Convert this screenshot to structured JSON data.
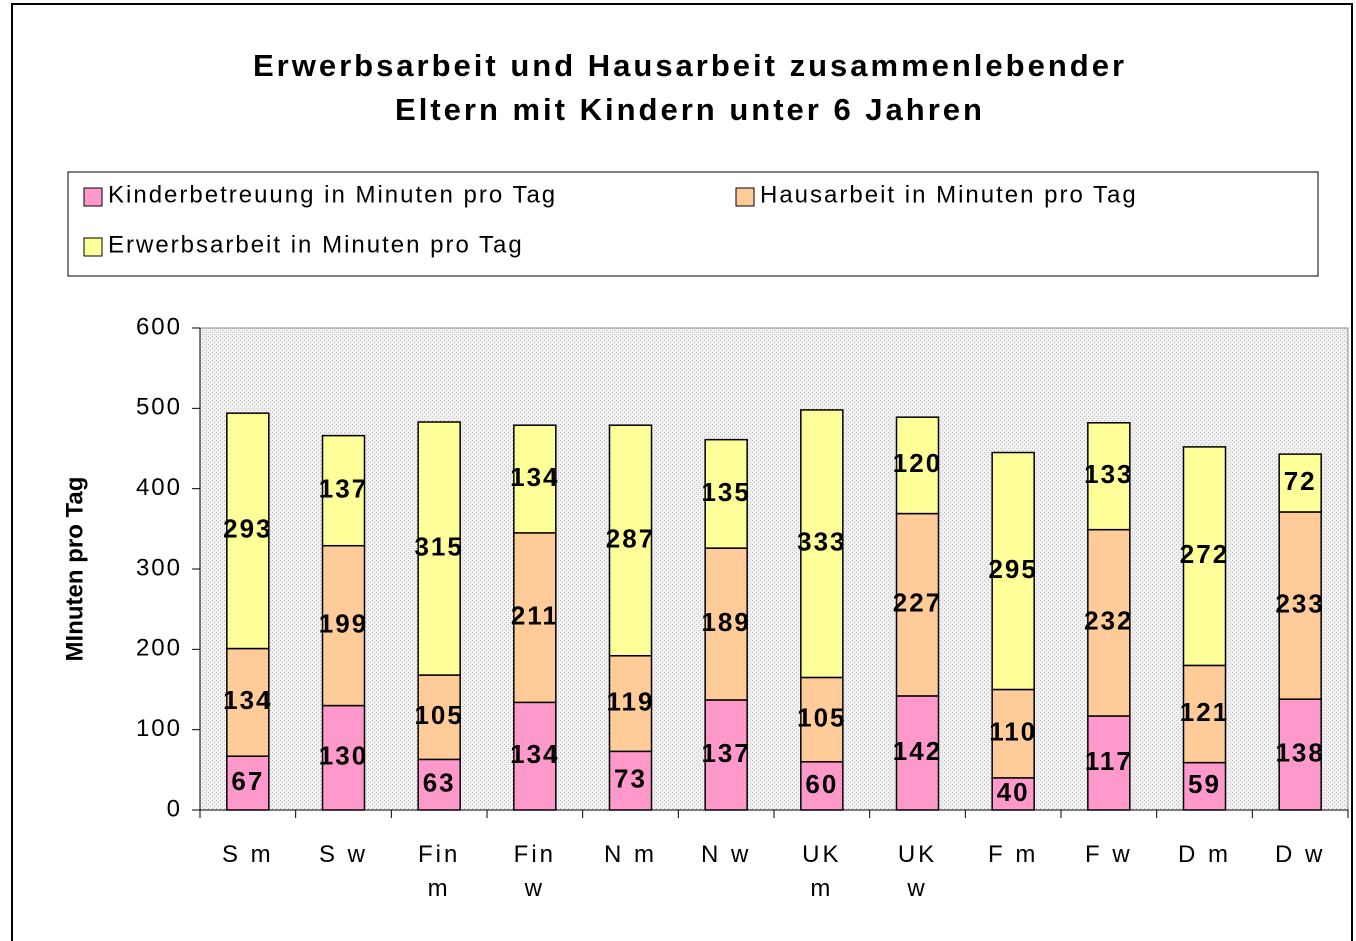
{
  "chart_data": {
    "type": "stacked_bar",
    "title": [
      "Erwerbsarbeit und Hausarbeit zusammenlebender",
      "Eltern mit Kindern unter 6 Jahren"
    ],
    "y_label": "MInuten pro Tag",
    "categories": [
      "S m",
      "S w",
      "Fin m",
      "Fin w",
      "N m",
      "N w",
      "UK m",
      "UK w",
      "F m",
      "F w",
      "D m",
      "D w"
    ],
    "series": [
      {
        "name": "Kinderbetreuung in Minuten pro Tag",
        "color": "#ff99cc",
        "values": [
          67,
          130,
          63,
          134,
          73,
          137,
          60,
          142,
          40,
          117,
          59,
          138
        ]
      },
      {
        "name": "Hausarbeit in Minuten pro Tag",
        "color": "#ffcc99",
        "values": [
          134,
          199,
          105,
          211,
          119,
          189,
          105,
          227,
          110,
          232,
          121,
          233
        ]
      },
      {
        "name": "Erwerbsarbeit in Minuten pro Tag",
        "color": "#ffff99",
        "values": [
          293,
          137,
          315,
          134,
          287,
          135,
          333,
          120,
          295,
          133,
          272,
          72
        ]
      }
    ],
    "ylim": [
      0,
      600
    ],
    "yticks": [
      0,
      100,
      200,
      300,
      400,
      500,
      600
    ],
    "legend": "top"
  }
}
